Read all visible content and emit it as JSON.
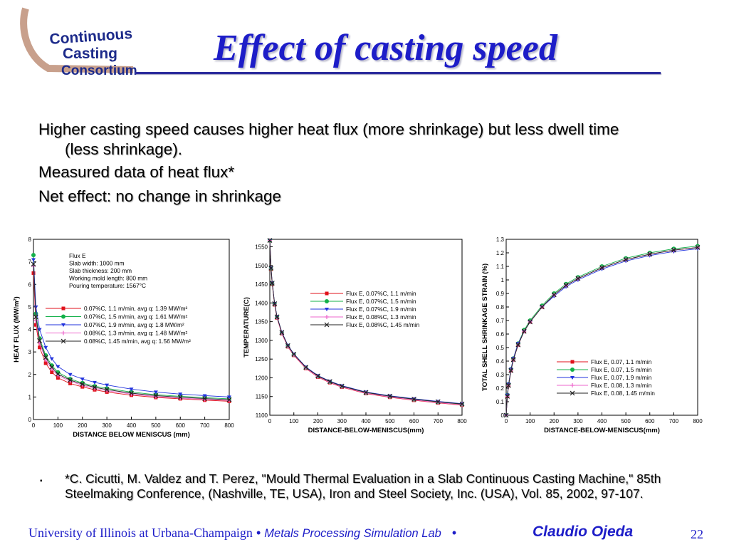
{
  "logo": {
    "line1": "Continuous",
    "line2": "Casting",
    "line3": "Consortium"
  },
  "title": "Effect of casting speed",
  "bullets": {
    "b1_line1": "Higher casting speed causes higher heat flux (more shrinkage) but less dwell time",
    "b1_line2": "(less shrinkage).",
    "b2": "Measured data of heat flux*",
    "b3": "Net effect: no change in shrinkage"
  },
  "colors": {
    "red": "#e0121b",
    "green": "#14b14a",
    "blue": "#2233dd",
    "pink": "#ee66cc",
    "black": "#222222"
  },
  "chart_data": [
    {
      "type": "line",
      "xlabel": "DISTANCE BELOW MENISCUS (mm)",
      "ylabel": "HEAT FLUX (MW/m²)",
      "xlim": [
        0,
        800
      ],
      "ylim": [
        0,
        8
      ],
      "xticks": [
        0,
        100,
        200,
        300,
        400,
        500,
        600,
        700,
        800
      ],
      "yticks": [
        0,
        1,
        2,
        3,
        4,
        5,
        6,
        7,
        8
      ],
      "x": [
        0,
        10,
        25,
        50,
        75,
        100,
        150,
        200,
        250,
        300,
        400,
        500,
        600,
        700,
        800
      ],
      "annotation": [
        "Flux E",
        "Slab width: 1000 mm",
        "Slab thickness: 200 mm",
        "Working mold length: 800 mm",
        "Pouring temperature: 1567°C"
      ],
      "legend_position": "center-left",
      "series": [
        {
          "name": "0.07%C, 1.1 m/min, avg q: 1.39 MW/m²",
          "marker": "square",
          "color": "red",
          "values": [
            6.5,
            4.2,
            3.2,
            2.5,
            2.1,
            1.85,
            1.6,
            1.45,
            1.32,
            1.22,
            1.08,
            0.98,
            0.92,
            0.86,
            0.81
          ]
        },
        {
          "name": "0.07%C, 1.5 m/min, avg q: 1.61 MW/m²",
          "marker": "circle",
          "color": "green",
          "values": [
            7.3,
            4.7,
            3.6,
            2.85,
            2.4,
            2.1,
            1.8,
            1.62,
            1.48,
            1.38,
            1.22,
            1.1,
            1.03,
            0.97,
            0.92
          ]
        },
        {
          "name": "0.07%C, 1.9 m/min, avg q: 1.8 MW/m²",
          "marker": "triangle-down",
          "color": "blue",
          "values": [
            7.1,
            5.0,
            4.0,
            3.2,
            2.7,
            2.35,
            2.0,
            1.8,
            1.65,
            1.53,
            1.35,
            1.22,
            1.13,
            1.06,
            1.0
          ]
        },
        {
          "name": "0.08%C, 1.3 m/min, avg q: 1.48 MW/m²",
          "marker": "plus",
          "color": "pink",
          "values": [
            6.8,
            4.4,
            3.4,
            2.65,
            2.25,
            1.95,
            1.7,
            1.52,
            1.38,
            1.28,
            1.13,
            1.02,
            0.95,
            0.9,
            0.85
          ]
        },
        {
          "name": "0.08%C, 1.45 m/min, avg q: 1.56 MW/m²",
          "marker": "x",
          "color": "black",
          "values": [
            6.9,
            4.55,
            3.5,
            2.75,
            2.32,
            2.02,
            1.75,
            1.57,
            1.43,
            1.33,
            1.17,
            1.06,
            0.99,
            0.93,
            0.88
          ]
        }
      ]
    },
    {
      "type": "line",
      "xlabel": "DISTANCE-BELOW-MENISCUS(mm)",
      "ylabel": "TEMPERATURE(C)",
      "xlim": [
        0,
        800
      ],
      "ylim": [
        1100,
        1570
      ],
      "xticks": [
        0,
        100,
        200,
        300,
        400,
        500,
        600,
        700,
        800
      ],
      "yticks": [
        1100,
        1150,
        1200,
        1250,
        1300,
        1350,
        1400,
        1450,
        1500,
        1550
      ],
      "x": [
        0,
        5,
        10,
        20,
        30,
        50,
        75,
        100,
        150,
        200,
        250,
        300,
        400,
        500,
        600,
        700,
        800
      ],
      "legend_position": "top-right",
      "series": [
        {
          "name": "Flux E, 0.07%C, 1.1 m/min",
          "marker": "square",
          "color": "red",
          "values": [
            1567,
            1490,
            1450,
            1395,
            1360,
            1318,
            1283,
            1260,
            1225,
            1202,
            1187,
            1175,
            1158,
            1148,
            1140,
            1133,
            1127
          ]
        },
        {
          "name": "Flux E, 0.07%C, 1.5 m/min",
          "marker": "circle",
          "color": "green",
          "values": [
            1567,
            1492,
            1452,
            1397,
            1362,
            1320,
            1285,
            1262,
            1227,
            1204,
            1189,
            1177,
            1160,
            1150,
            1142,
            1135,
            1129
          ]
        },
        {
          "name": "Flux E, 0.07%C, 1.9 m/min",
          "marker": "triangle-down",
          "color": "blue",
          "values": [
            1567,
            1494,
            1454,
            1399,
            1364,
            1322,
            1287,
            1264,
            1229,
            1206,
            1191,
            1179,
            1162,
            1152,
            1144,
            1137,
            1131
          ]
        },
        {
          "name": "Flux E, 0.08%C, 1.3 m/min",
          "marker": "plus",
          "color": "pink",
          "values": [
            1567,
            1491,
            1451,
            1396,
            1361,
            1319,
            1284,
            1261,
            1226,
            1203,
            1188,
            1176,
            1159,
            1149,
            1141,
            1134,
            1128
          ]
        },
        {
          "name": "Flux E, 0.08%C, 1.45 m/min",
          "marker": "x",
          "color": "black",
          "values": [
            1567,
            1493,
            1453,
            1398,
            1363,
            1321,
            1286,
            1263,
            1228,
            1205,
            1190,
            1178,
            1161,
            1151,
            1143,
            1136,
            1130
          ]
        }
      ]
    },
    {
      "type": "line",
      "xlabel": "DISTANCE-BELOW-MENISCUS(mm)",
      "ylabel": "TOTAL SHELL SHRINKAGE STRAIN (%)",
      "xlim": [
        0,
        800
      ],
      "ylim": [
        0,
        1.3
      ],
      "xticks": [
        0,
        100,
        200,
        300,
        400,
        500,
        600,
        700,
        800
      ],
      "yticks": [
        0,
        0.1,
        0.2,
        0.3,
        0.4,
        0.5,
        0.6,
        0.7,
        0.8,
        0.9,
        1,
        1.1,
        1.2,
        1.3
      ],
      "x": [
        0,
        5,
        10,
        20,
        30,
        50,
        75,
        100,
        150,
        200,
        250,
        300,
        400,
        500,
        600,
        700,
        800
      ],
      "legend_position": "bottom-right",
      "series": [
        {
          "name": "Flux E, 0.07, 1.1 m/min",
          "marker": "square",
          "color": "red",
          "values": [
            0,
            0.14,
            0.22,
            0.33,
            0.41,
            0.52,
            0.62,
            0.69,
            0.8,
            0.89,
            0.96,
            1.01,
            1.09,
            1.15,
            1.19,
            1.22,
            1.24
          ]
        },
        {
          "name": "Flux E, 0.07, 1.5 m/min",
          "marker": "circle",
          "color": "green",
          "values": [
            0,
            0.15,
            0.23,
            0.34,
            0.42,
            0.53,
            0.63,
            0.7,
            0.81,
            0.9,
            0.97,
            1.02,
            1.1,
            1.16,
            1.2,
            1.23,
            1.25
          ]
        },
        {
          "name": "Flux E, 0.07, 1.9 m/min",
          "marker": "triangle-down",
          "color": "blue",
          "values": [
            0,
            0.15,
            0.23,
            0.34,
            0.42,
            0.53,
            0.62,
            0.69,
            0.8,
            0.88,
            0.95,
            1.0,
            1.08,
            1.14,
            1.18,
            1.21,
            1.23
          ]
        },
        {
          "name": "Flux E, 0.08, 1.3 m/min",
          "marker": "plus",
          "color": "pink",
          "values": [
            0,
            0.14,
            0.22,
            0.33,
            0.41,
            0.52,
            0.62,
            0.69,
            0.8,
            0.89,
            0.96,
            1.01,
            1.09,
            1.15,
            1.19,
            1.22,
            1.24
          ]
        },
        {
          "name": "Flux E, 0.08, 1.45 m/min",
          "marker": "x",
          "color": "black",
          "values": [
            0,
            0.14,
            0.22,
            0.33,
            0.41,
            0.52,
            0.62,
            0.69,
            0.8,
            0.89,
            0.96,
            1.01,
            1.09,
            1.15,
            1.19,
            1.22,
            1.24
          ]
        }
      ]
    }
  ],
  "reference": {
    "marker": "▪",
    "text": "*C. Cicutti, M. Valdez and T. Perez, \"Mould Thermal Evaluation in a Slab Continuous Casting Machine,\" 85th Steelmaking Conference, (Nashville, TE, USA), Iron and Steel Society, Inc. (USA), Vol. 85, 2002, 97-107."
  },
  "footer": {
    "university": "University of Illinois at Urbana-Champaign",
    "sep": "•",
    "lab": "Metals Processing Simulation Lab",
    "author": "Claudio Ojeda",
    "page": "22"
  }
}
